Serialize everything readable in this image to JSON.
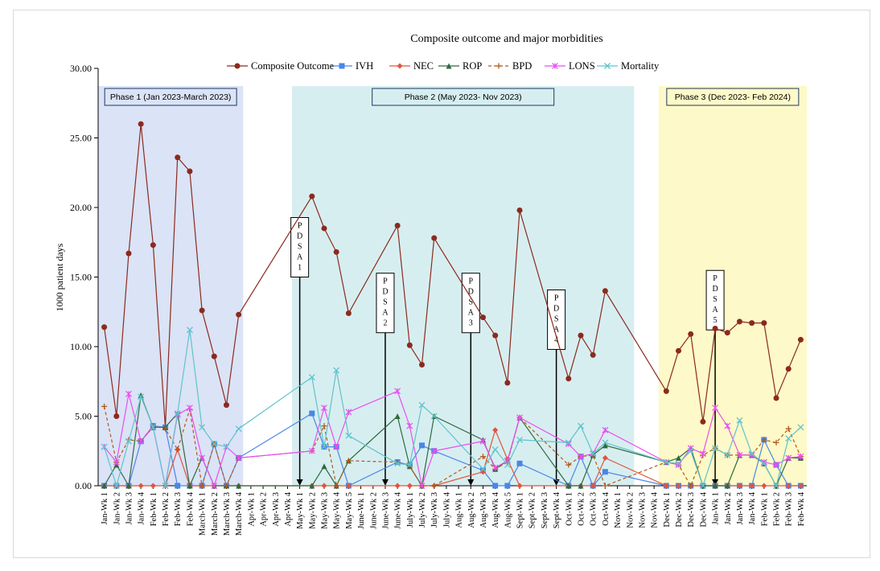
{
  "colors": {
    "composite": "#8b2a1e",
    "ivh": "#4a86e8",
    "nec": "#e0553d",
    "rop": "#2e6b3e",
    "bpd": "#b05a1b",
    "lons": "#e84ff0",
    "mortality": "#5fc3cc",
    "phase1_fill": "#dbe3f6",
    "phase2_fill": "#d7eef0",
    "phase3_fill": "#fdf9c8"
  },
  "chart_data": {
    "type": "line",
    "title": "Composite outcome and major morbidities",
    "ylabel": "1000 patient days",
    "xlabel": "",
    "ylim": [
      0,
      30
    ],
    "yticks": [
      "0.00",
      "5.00",
      "10.00",
      "15.00",
      "20.00",
      "25.00",
      "30.00"
    ],
    "grid": false,
    "legend_position": "top",
    "categories": [
      "Jan-Wk 1",
      "Jan-Wk 2",
      "Jan-Wk 3",
      "Jan-Wk 4",
      "Feb-Wk 1",
      "Feb-Wk 2",
      "Feb-Wk 3",
      "Feb-Wk 4",
      "March-Wk 1",
      "March-Wk 2",
      "March-Wk 3",
      "March-Wk 4",
      "Apr-Wk 1",
      "Apr-Wk 2",
      "Apr-Wk 3",
      "Apr-Wk 4",
      "May-Wk 1",
      "May-Wk 2",
      "May-Wk 3",
      "May-Wk 4",
      "May-Wk 5",
      "June-Wk 1",
      "June-Wk 2",
      "June-Wk 3",
      "June-Wk 4",
      "July-Wk 1",
      "July-Wk 2",
      "July-Wk 3",
      "July-Wk 4",
      "Aug-Wk 1",
      "Aug-Wk 2",
      "Aug-Wk 3",
      "Aug-Wk 4",
      "Aug-Wk 5",
      "Sept-Wk 1",
      "Sept-Wk 2",
      "Sept-Wk 3",
      "Sept-Wk 4",
      "Oct-Wk 1",
      "Oct-Wk 2",
      "Oct-Wk 3",
      "Oct-Wk 4",
      "Nov-Wk 1",
      "Nov-Wk 2",
      "Nov-Wk 3",
      "Nov-Wk 4",
      "Dec-Wk 1",
      "Dec-Wk 2",
      "Dec-Wk 3",
      "Dec-Wk 4",
      "Jan-Wk 1",
      "Jan-Wk 2",
      "Jan-Wk 3",
      "Jan-Wk 4",
      "Feb-Wk 1",
      "Feb-Wk 2",
      "Feb-Wk 3",
      "Feb-Wk 4"
    ],
    "series": [
      {
        "name": "Composite Outcome",
        "color_key": "composite",
        "marker": "circle",
        "style": "solid",
        "values": [
          11.4,
          5.0,
          16.7,
          26.0,
          17.3,
          4.2,
          23.6,
          22.6,
          12.6,
          9.3,
          5.8,
          12.3,
          null,
          null,
          null,
          null,
          null,
          20.8,
          18.5,
          16.8,
          12.4,
          null,
          null,
          null,
          18.7,
          10.1,
          8.7,
          17.8,
          null,
          null,
          null,
          12.1,
          10.8,
          7.4,
          19.8,
          null,
          null,
          null,
          7.7,
          10.8,
          9.4,
          14.0,
          null,
          null,
          null,
          null,
          6.8,
          9.7,
          10.9,
          4.6,
          11.3,
          11.0,
          11.8,
          11.7,
          11.7,
          6.3,
          8.4,
          10.5
        ]
      },
      {
        "name": "IVH",
        "color_key": "ivh",
        "marker": "square",
        "style": "solid",
        "values": [
          0,
          0,
          0,
          3.2,
          4.3,
          4.2,
          0,
          0,
          0,
          3.0,
          0,
          2.0,
          null,
          null,
          null,
          null,
          null,
          5.2,
          2.8,
          2.8,
          0,
          null,
          null,
          null,
          1.7,
          1.5,
          2.9,
          2.5,
          null,
          null,
          null,
          1.1,
          0,
          0,
          1.6,
          null,
          null,
          null,
          0,
          2.1,
          0,
          1.0,
          null,
          null,
          null,
          null,
          0,
          0,
          0,
          0,
          0,
          0,
          0,
          0,
          3.3,
          1.5,
          0,
          0
        ]
      },
      {
        "name": "NEC",
        "color_key": "nec",
        "marker": "diamond",
        "style": "solid",
        "values": [
          0,
          0,
          0,
          0,
          0,
          0,
          2.6,
          0,
          0,
          0,
          0,
          0,
          null,
          null,
          null,
          null,
          null,
          0,
          0,
          0,
          0,
          null,
          null,
          null,
          0,
          0,
          0,
          0,
          null,
          null,
          null,
          1.0,
          4.0,
          1.9,
          0,
          null,
          null,
          null,
          0,
          0,
          0,
          2.0,
          null,
          null,
          null,
          null,
          0,
          0,
          0,
          0,
          0,
          0,
          0,
          0,
          0,
          0,
          0,
          0
        ]
      },
      {
        "name": "ROP",
        "color_key": "rop",
        "marker": "triangle",
        "style": "solid",
        "values": [
          0,
          1.5,
          0,
          6.5,
          4.2,
          4.2,
          5.2,
          0,
          2.0,
          0,
          0,
          0,
          null,
          null,
          null,
          null,
          null,
          0,
          1.4,
          0,
          1.8,
          null,
          null,
          null,
          5.0,
          1.4,
          0,
          5.0,
          null,
          null,
          null,
          3.3,
          1.2,
          1.8,
          4.9,
          null,
          null,
          null,
          0,
          0,
          2.2,
          2.9,
          null,
          null,
          null,
          null,
          1.7,
          2.0,
          2.7,
          0,
          0,
          0,
          2.2,
          2.2,
          1.6,
          0,
          2.0,
          2.0
        ]
      },
      {
        "name": "BPD",
        "color_key": "bpd",
        "marker": "plus",
        "style": "dashed",
        "values": [
          5.7,
          1.7,
          3.3,
          3.2,
          4.3,
          4.1,
          2.6,
          5.5,
          0,
          3.0,
          0,
          2.0,
          null,
          null,
          null,
          null,
          null,
          2.5,
          4.3,
          0,
          1.8,
          null,
          null,
          null,
          1.7,
          1.4,
          0,
          0,
          null,
          null,
          null,
          2.1,
          1.2,
          1.7,
          4.9,
          null,
          null,
          null,
          1.5,
          2.1,
          2.2,
          0,
          null,
          null,
          null,
          null,
          1.7,
          1.5,
          0,
          2.2,
          2.7,
          2.2,
          2.2,
          2.2,
          3.3,
          3.1,
          4.1,
          2.1
        ]
      },
      {
        "name": "LONS",
        "color_key": "lons",
        "marker": "star",
        "style": "solid",
        "values": [
          2.8,
          1.7,
          6.6,
          3.2,
          4.2,
          0,
          5.1,
          5.6,
          2.0,
          0,
          2.8,
          2.0,
          null,
          null,
          null,
          null,
          null,
          2.5,
          5.6,
          2.8,
          5.3,
          null,
          null,
          null,
          6.8,
          4.3,
          0,
          2.5,
          null,
          null,
          null,
          3.2,
          1.3,
          1.8,
          4.9,
          null,
          null,
          null,
          3.0,
          2.1,
          2.3,
          4.0,
          null,
          null,
          null,
          null,
          1.7,
          1.5,
          2.7,
          2.3,
          5.6,
          4.3,
          2.2,
          2.2,
          1.7,
          1.5,
          2.0,
          2.1
        ]
      },
      {
        "name": "Mortality",
        "color_key": "mortality",
        "marker": "x",
        "style": "solid",
        "values": [
          2.8,
          0,
          3.2,
          6.4,
          4.2,
          0,
          5.2,
          11.2,
          4.2,
          3.0,
          2.8,
          4.1,
          null,
          null,
          null,
          null,
          null,
          7.8,
          2.8,
          8.3,
          3.6,
          null,
          null,
          null,
          1.6,
          1.5,
          5.8,
          5.0,
          null,
          null,
          null,
          1.2,
          2.6,
          1.5,
          3.3,
          null,
          null,
          null,
          3.1,
          4.3,
          2.3,
          3.1,
          null,
          null,
          null,
          null,
          1.7,
          1.6,
          2.5,
          0,
          2.7,
          2.2,
          4.7,
          2.3,
          1.6,
          0,
          3.4,
          4.2
        ]
      }
    ],
    "phases": [
      {
        "label": "Phase 1 (Jan 2023-March 2023)",
        "start": "Jan-Wk 1",
        "end": "March-Wk 4",
        "color_key": "phase1_fill"
      },
      {
        "label": "Phase 2 (May 2023- Nov 2023)",
        "start": "May-Wk 1",
        "end": "Nov-Wk 2",
        "color_key": "phase2_fill"
      },
      {
        "label": "Phase 3 (Dec 2023- Feb 2024)",
        "start": "Dec-Wk 1",
        "end": "Feb-Wk 4",
        "color_key": "phase3_fill"
      }
    ],
    "annotations": [
      {
        "label": "PDSA1",
        "chars": [
          "P",
          "D",
          "S",
          "A",
          "1"
        ],
        "at": "May-Wk 1",
        "top_value": 15.0,
        "bottom_value": 0
      },
      {
        "label": "PDSA2",
        "chars": [
          "P",
          "D",
          "S",
          "A",
          "2"
        ],
        "at": "June-Wk 3",
        "top_value": 11.0,
        "bottom_value": 0
      },
      {
        "label": "PDSA3",
        "chars": [
          "P",
          "D",
          "S",
          "A",
          "3"
        ],
        "at": "Aug-Wk 2",
        "top_value": 11.0,
        "bottom_value": 0
      },
      {
        "label": "PDSA4",
        "chars": [
          "P",
          "D",
          "S",
          "A",
          "4"
        ],
        "at": "Sept-Wk 4",
        "top_value": 9.8,
        "bottom_value": 0
      },
      {
        "label": "PDSA5",
        "chars": [
          "P",
          "D",
          "S",
          "A",
          "5"
        ],
        "at": "Jan-Wk 1",
        "top_value": 11.2,
        "bottom_value": 0
      }
    ]
  }
}
